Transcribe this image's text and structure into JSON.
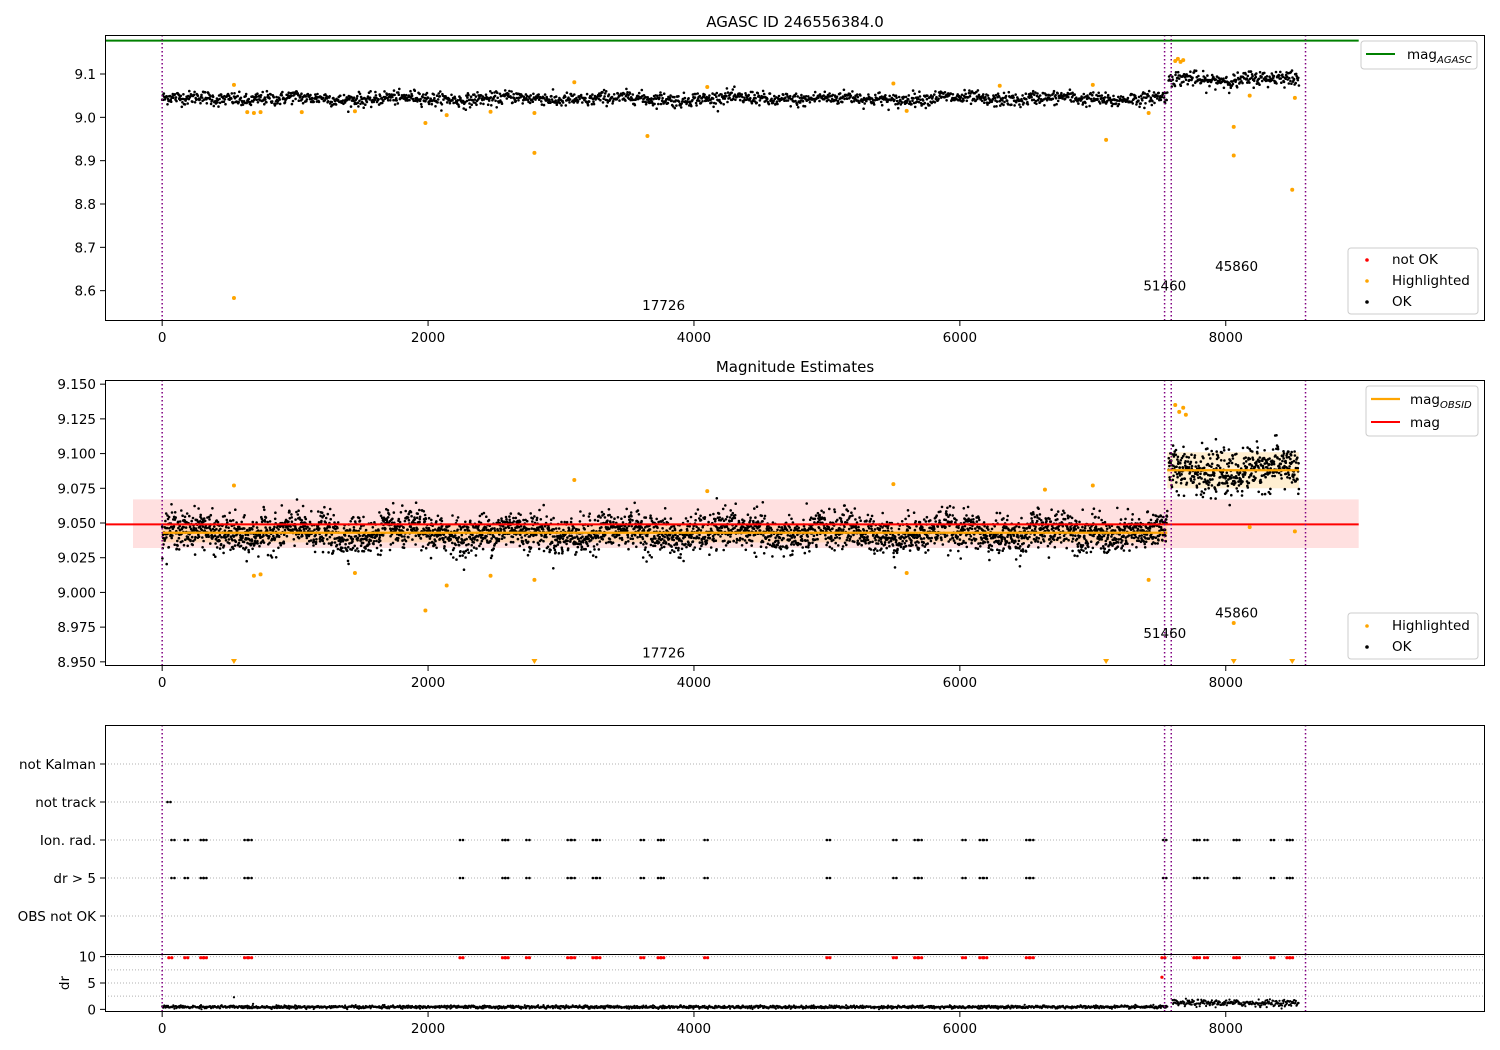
{
  "chart_data": [
    {
      "id": "top",
      "type": "scatter",
      "title": "AGASC ID 246556384.0",
      "xlabel": "",
      "ylabel": "",
      "xlim": [
        -430,
        9950
      ],
      "ylim": [
        8.53,
        9.19
      ],
      "x_ticks": [
        0,
        2000,
        4000,
        6000,
        8000
      ],
      "x_tick_labels": [
        "0",
        "2000",
        "4000",
        "6000",
        "8000"
      ],
      "y_ticks": [
        8.6,
        8.7,
        8.8,
        8.9,
        9.0,
        9.1
      ],
      "y_tick_labels": [
        "8.6",
        "8.7",
        "8.8",
        "8.9",
        "9.0",
        "9.1"
      ],
      "mag_agasc": {
        "value": 9.177,
        "x_range": [
          -430,
          9000
        ],
        "color": "#008000"
      },
      "segments": [
        {
          "x0": 0,
          "x1": 7560,
          "center": 9.043,
          "spread": 0.014
        },
        {
          "x0": 7570,
          "x1": 8550,
          "center": 9.088,
          "spread": 0.016
        }
      ],
      "highlighted": [
        {
          "x": 540,
          "y": 8.583
        },
        {
          "x": 2800,
          "y": 8.918
        },
        {
          "x": 3650,
          "y": 8.957
        },
        {
          "x": 7100,
          "y": 8.948
        },
        {
          "x": 8060,
          "y": 8.978
        },
        {
          "x": 8060,
          "y": 8.912
        },
        {
          "x": 8500,
          "y": 8.833
        },
        {
          "x": 1980,
          "y": 8.987
        },
        {
          "x": 2140,
          "y": 9.005
        },
        {
          "x": 540,
          "y": 9.075
        },
        {
          "x": 3100,
          "y": 9.081
        },
        {
          "x": 5500,
          "y": 9.078
        },
        {
          "x": 7000,
          "y": 9.075
        },
        {
          "x": 640,
          "y": 9.012
        },
        {
          "x": 690,
          "y": 9.01
        },
        {
          "x": 740,
          "y": 9.012
        },
        {
          "x": 1050,
          "y": 9.012
        },
        {
          "x": 1450,
          "y": 9.014
        },
        {
          "x": 2470,
          "y": 9.013
        },
        {
          "x": 2800,
          "y": 9.01
        },
        {
          "x": 7420,
          "y": 9.01
        },
        {
          "x": 5600,
          "y": 9.015
        },
        {
          "x": 8180,
          "y": 9.05
        },
        {
          "x": 8520,
          "y": 9.045
        },
        {
          "x": 7620,
          "y": 9.13
        },
        {
          "x": 7640,
          "y": 9.135
        },
        {
          "x": 7660,
          "y": 9.128
        },
        {
          "x": 7680,
          "y": 9.132
        },
        {
          "x": 4100,
          "y": 9.07
        },
        {
          "x": 6300,
          "y": 9.073
        }
      ],
      "obsid_lines": [
        0,
        7540,
        7590,
        8600
      ],
      "annotations": [
        {
          "text": "17726",
          "x": 3610,
          "y": 8.555
        },
        {
          "text": "51460",
          "x": 7380,
          "y": 8.6
        },
        {
          "text": "45860",
          "x": 7920,
          "y": 8.645
        }
      ],
      "legend": {
        "placement": "upper-right + lower-right",
        "line_entry": {
          "label": "mag",
          "subscript": "AGASC",
          "color": "#008000"
        },
        "point_entries": [
          {
            "label": "not OK",
            "color": "#ff0000"
          },
          {
            "label": "Highlighted",
            "color": "#ffa500"
          },
          {
            "label": "OK",
            "color": "#000000"
          }
        ]
      }
    },
    {
      "id": "middle",
      "type": "scatter",
      "title": "Magnitude Estimates",
      "xlabel": "",
      "ylabel": "",
      "xlim": [
        -430,
        9950
      ],
      "ylim": [
        8.947,
        9.153
      ],
      "x_ticks": [
        0,
        2000,
        4000,
        6000,
        8000
      ],
      "x_tick_labels": [
        "0",
        "2000",
        "4000",
        "6000",
        "8000"
      ],
      "y_ticks": [
        8.95,
        8.975,
        9.0,
        9.025,
        9.05,
        9.075,
        9.1,
        9.125,
        9.15
      ],
      "y_tick_labels": [
        "8.950",
        "8.975",
        "9.000",
        "9.025",
        "9.050",
        "9.075",
        "9.100",
        "9.125",
        "9.150"
      ],
      "mag": {
        "value": 9.049,
        "band": [
          9.032,
          9.067
        ],
        "x_range": [
          -430,
          9000
        ],
        "color": "#ff0000"
      },
      "mag_obsid": [
        {
          "x0": 0,
          "x1": 7560,
          "value": 9.043,
          "band": [
            9.036,
            9.05
          ]
        },
        {
          "x0": 7560,
          "x1": 8550,
          "value": 9.088,
          "band": [
            9.075,
            9.101
          ]
        }
      ],
      "segments": [
        {
          "x0": 0,
          "x1": 7560,
          "center": 9.043,
          "spread": 0.012
        },
        {
          "x0": 7570,
          "x1": 8550,
          "center": 9.088,
          "spread": 0.014
        }
      ],
      "highlighted": [
        {
          "x": 540,
          "y": 9.077
        },
        {
          "x": 3100,
          "y": 9.081
        },
        {
          "x": 5500,
          "y": 9.078
        },
        {
          "x": 6640,
          "y": 9.074
        },
        {
          "x": 7000,
          "y": 9.077
        },
        {
          "x": 1980,
          "y": 8.987
        },
        {
          "x": 2140,
          "y": 9.005
        },
        {
          "x": 7420,
          "y": 9.009
        },
        {
          "x": 8060,
          "y": 8.978
        },
        {
          "x": 690,
          "y": 9.012
        },
        {
          "x": 740,
          "y": 9.013
        },
        {
          "x": 1450,
          "y": 9.014
        },
        {
          "x": 2470,
          "y": 9.012
        },
        {
          "x": 2800,
          "y": 9.009
        },
        {
          "x": 5600,
          "y": 9.014
        },
        {
          "x": 8180,
          "y": 9.047
        },
        {
          "x": 8520,
          "y": 9.044
        },
        {
          "x": 4100,
          "y": 9.073
        },
        {
          "x": 7620,
          "y": 9.135
        },
        {
          "x": 7650,
          "y": 9.13
        },
        {
          "x": 7680,
          "y": 9.133
        },
        {
          "x": 7700,
          "y": 9.128
        }
      ],
      "clipped_highlighted_x": [
        540,
        2800,
        7100,
        8060,
        8500
      ],
      "obsid_lines": [
        0,
        7540,
        7590,
        8600
      ],
      "annotations": [
        {
          "text": "17726",
          "x": 3610,
          "y": 8.953
        },
        {
          "text": "51460",
          "x": 7380,
          "y": 8.967
        },
        {
          "text": "45860",
          "x": 7920,
          "y": 8.982
        }
      ],
      "legend": {
        "placement": "upper-right + lower-right",
        "line_entries": [
          {
            "label": "mag",
            "subscript": "OBSID",
            "color": "#ffa500"
          },
          {
            "label": "mag",
            "subscript": "",
            "color": "#ff0000"
          }
        ],
        "point_entries": [
          {
            "label": "Highlighted",
            "color": "#ffa500"
          },
          {
            "label": "OK",
            "color": "#000000"
          }
        ]
      }
    },
    {
      "id": "flags",
      "type": "scatter",
      "title": "",
      "xlabel": "",
      "ylabel": "",
      "xlim": [
        -430,
        9950
      ],
      "categories": [
        "not Kalman",
        "not track",
        "Ion. rad.",
        "dr > 5",
        "OBS not OK"
      ],
      "points": {
        "not track": [
          40
        ],
        "Ion. rad.": [
          70,
          170,
          290,
          310,
          620,
          650,
          2240,
          2560,
          2580,
          2740,
          3050,
          3080,
          3240,
          3270,
          3600,
          3730,
          3750,
          4080,
          5000,
          5500,
          5660,
          5690,
          6020,
          6150,
          6180,
          6500,
          6530,
          7530,
          7760,
          7780,
          7840,
          8060,
          8080,
          8340,
          8460,
          8480
        ],
        "dr > 5": [
          70,
          170,
          290,
          310,
          620,
          650,
          2240,
          2560,
          2580,
          2740,
          3050,
          3080,
          3240,
          3270,
          3600,
          3730,
          3750,
          4080,
          5000,
          5500,
          5660,
          5690,
          6020,
          6150,
          6180,
          6500,
          6530,
          7530,
          7760,
          7780,
          7840,
          8060,
          8080,
          8340,
          8460,
          8480
        ]
      },
      "obsid_lines": [
        0,
        7540,
        7590,
        8600
      ]
    },
    {
      "id": "dr",
      "type": "scatter",
      "title": "",
      "xlabel": "",
      "ylabel": "dr",
      "xlim": [
        -430,
        9950
      ],
      "ylim": [
        -0.5,
        10.5
      ],
      "y_ticks": [
        0,
        5,
        10
      ],
      "y_tick_labels": [
        "0",
        "5",
        "10"
      ],
      "x_ticks": [
        0,
        2000,
        4000,
        6000,
        8000
      ],
      "x_tick_labels": [
        "0",
        "2000",
        "4000",
        "6000",
        "8000"
      ],
      "segments": [
        {
          "x0": 0,
          "x1": 7560,
          "center": 0.45,
          "spread": 0.2
        },
        {
          "x0": 7600,
          "x1": 8550,
          "center": 1.2,
          "spread": 0.45
        }
      ],
      "outliers_ok": [
        {
          "x": 540,
          "y": 2.3
        }
      ],
      "not_ok_at_top_x": [
        50,
        170,
        290,
        310,
        620,
        650,
        2240,
        2560,
        2580,
        2740,
        3050,
        3080,
        3240,
        3270,
        3600,
        3730,
        3750,
        4080,
        5000,
        5500,
        5660,
        5690,
        6020,
        6150,
        6180,
        6500,
        6530,
        7520,
        7760,
        7780,
        7840,
        8060,
        8080,
        8340,
        8460,
        8480
      ],
      "not_ok_other": [
        {
          "x": 7520,
          "y": 6.1
        }
      ],
      "obsid_lines": [
        0,
        7540,
        7590,
        8600
      ]
    }
  ]
}
